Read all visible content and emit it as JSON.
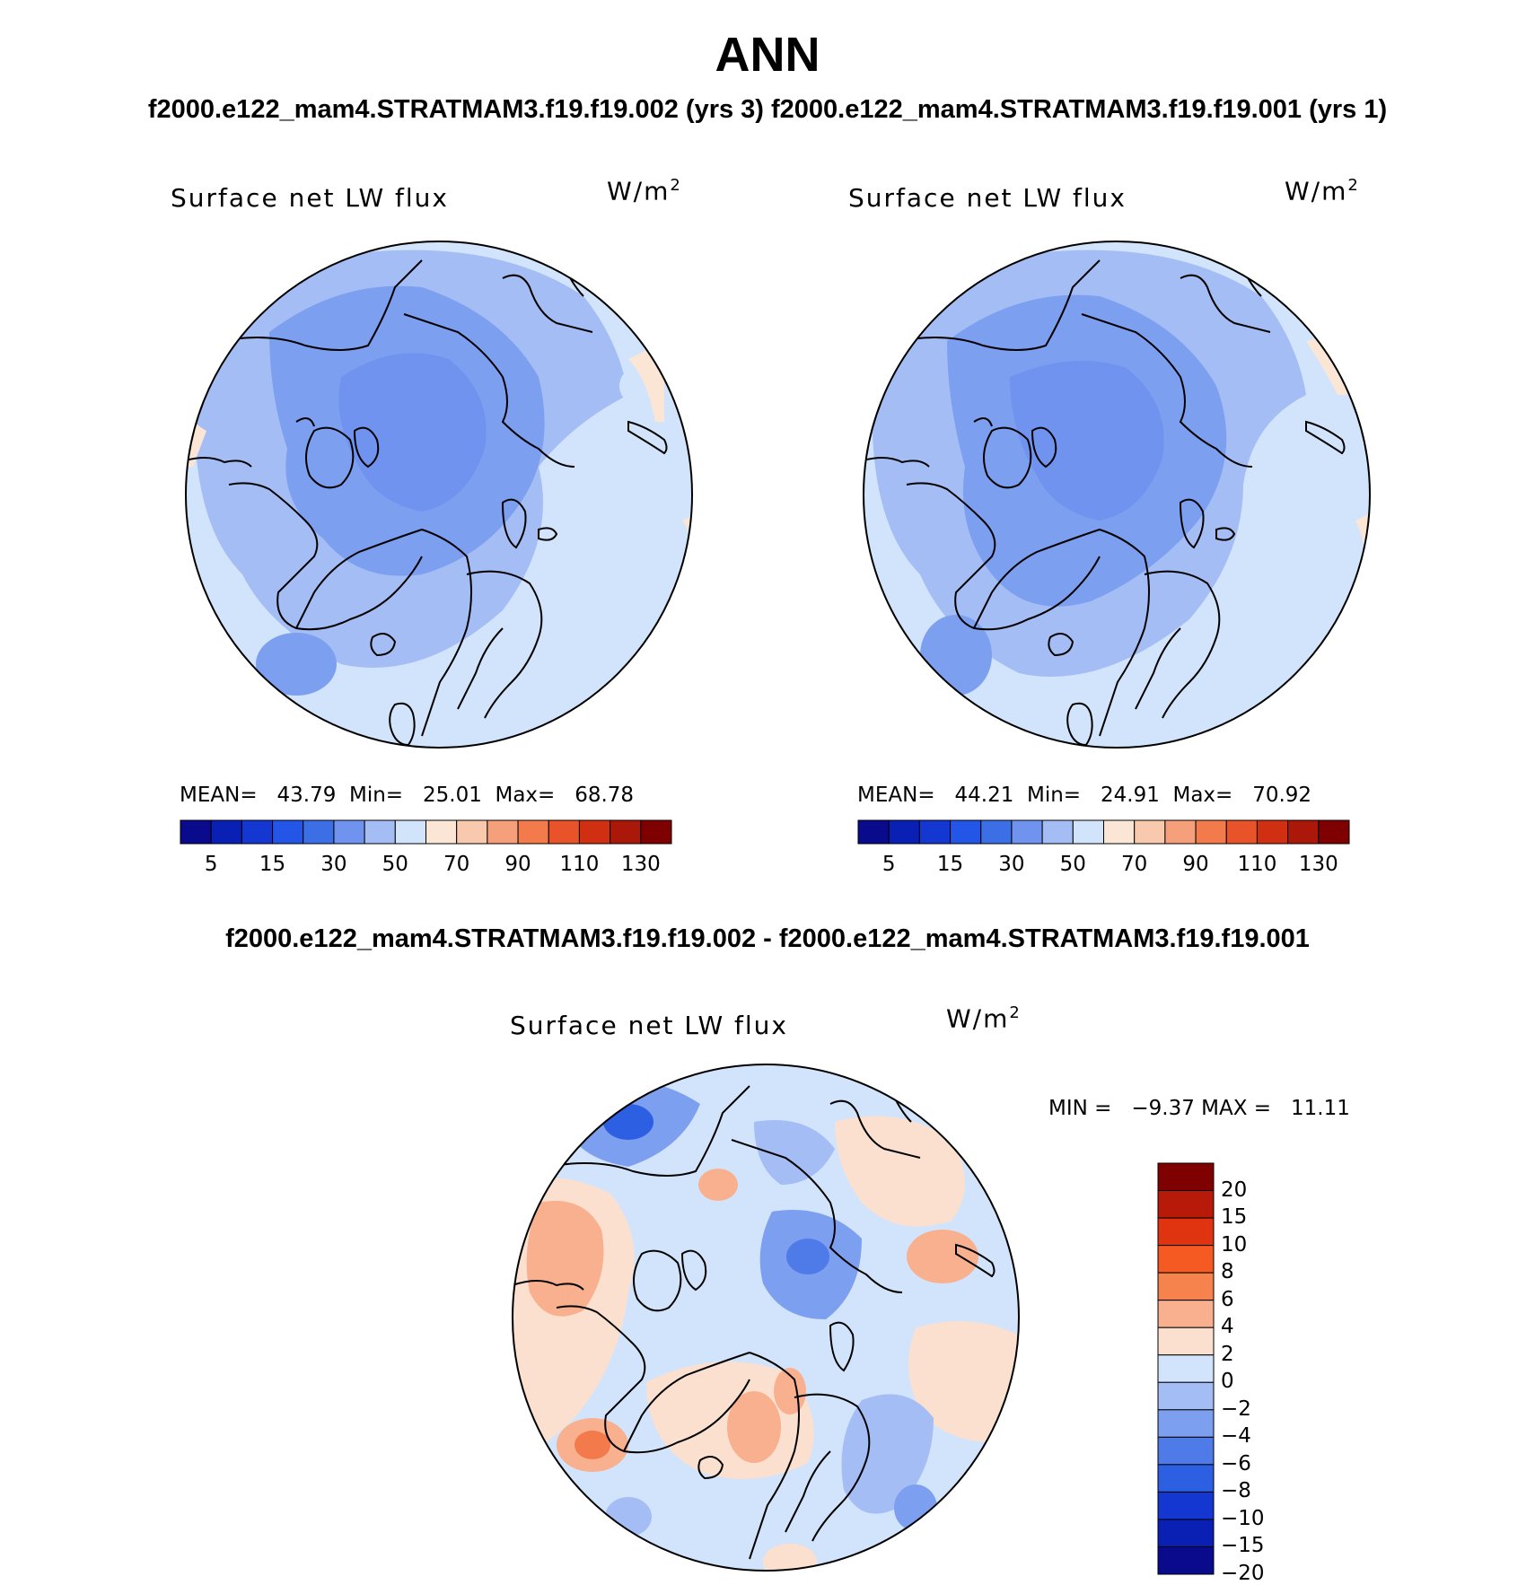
{
  "figure": {
    "title": "ANN",
    "subtitle": "f2000.e122_mam4.STRATMAM3.f19.f19.002 (yrs 3)  f2000.e122_mam4.STRATMAM3.f19.f19.001 (yrs 1)",
    "diff_title": "f2000.e122_mam4.STRATMAM3.f19.f19.002 - f2000.e122_mam4.STRATMAM3.f19.f19.001"
  },
  "panels": {
    "left": {
      "variable": "Surface net LW flux",
      "units_base": "W/m",
      "units_exp": "2",
      "stats": "MEAN=   43.79  Min=   25.01  Max=   68.78"
    },
    "right": {
      "variable": "Surface net LW flux",
      "units_base": "W/m",
      "units_exp": "2",
      "stats": "MEAN=   44.21  Min=   24.91  Max=   70.92"
    },
    "diff": {
      "variable": "Surface net LW flux",
      "units_base": "W/m",
      "units_exp": "2",
      "stats": "MIN =   −9.37 MAX =   11.11"
    }
  },
  "colorbar_abs": {
    "colors": [
      "#0a0a8c",
      "#0a1fb4",
      "#1437d2",
      "#2355e6",
      "#3c6fe6",
      "#6f93ee",
      "#a4bdf5",
      "#d2e4fb",
      "#fbe6d6",
      "#f9c9ae",
      "#f5a07a",
      "#f27a4b",
      "#e8532a",
      "#d02f12",
      "#ab1709",
      "#7f0000"
    ],
    "labels": [
      "5",
      "15",
      "30",
      "50",
      "70",
      "90",
      "110",
      "130"
    ]
  },
  "colorbar_diff": {
    "colors": [
      "#7f0000",
      "#b81a0a",
      "#e0330f",
      "#f55a23",
      "#f6834e",
      "#f8b08e",
      "#fbe0cf",
      "#d2e4fb",
      "#a4bdf5",
      "#7d9ff0",
      "#4e7be8",
      "#2d5fe3",
      "#1437d2",
      "#0a1fb4",
      "#0a0a8c"
    ],
    "labels": [
      "20",
      "15",
      "10",
      "8",
      "6",
      "4",
      "2",
      "0",
      "−2",
      "−4",
      "−6",
      "−8",
      "−10",
      "−15",
      "−20"
    ]
  },
  "map_colors": {
    "ocean_light": "#d2e4fb",
    "light": "#a4bdf5",
    "mid": "#7d9ff0",
    "dark": "#5c85ea",
    "warm": "#fbe6d6",
    "diff_warm": "#fbe0cf",
    "diff_orange": "#f8b08e",
    "diff_red": "#f27a4b",
    "diff_blue": "#a4bdf5",
    "diff_dblue": "#4e7be8"
  }
}
